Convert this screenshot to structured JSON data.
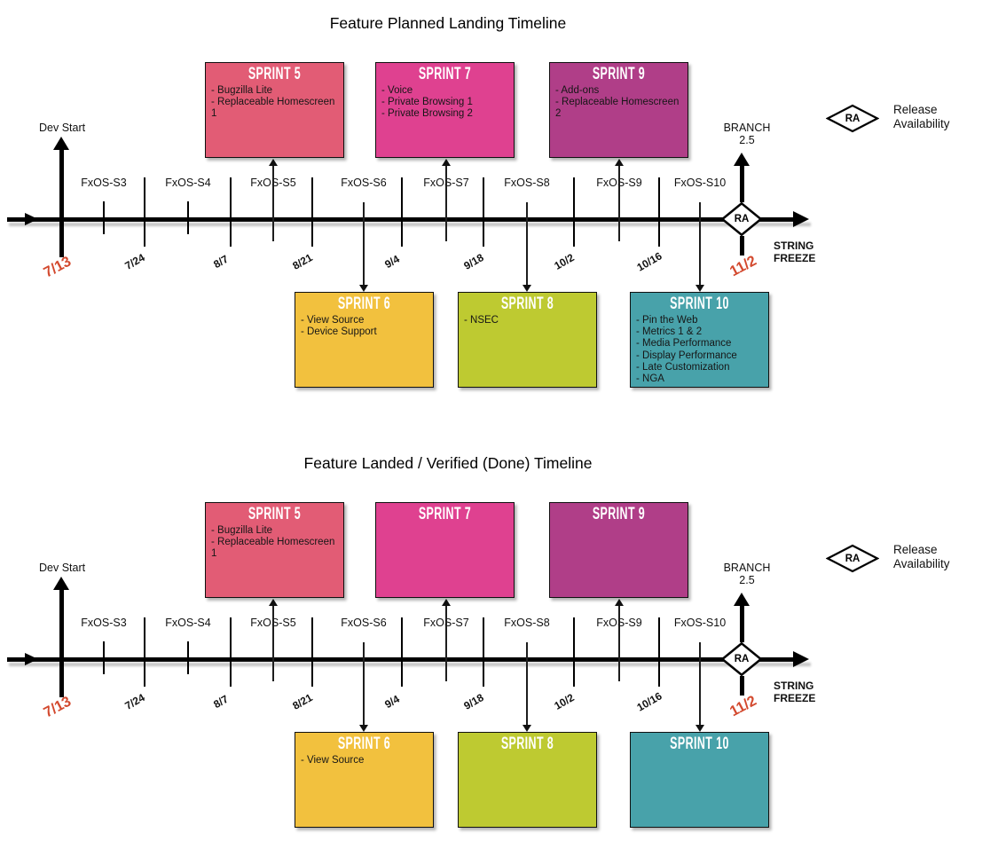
{
  "diagram": {
    "legend": {
      "symbol": "RA",
      "label_line1": "Release",
      "label_line2": "Availability"
    },
    "axis": {
      "dev_start": "Dev Start",
      "start_date": "7/13",
      "release_date": "11/2",
      "ra": "RA",
      "branch_line1": "BRANCH",
      "branch_line2": "2.5",
      "string_freeze_line1": "STRING",
      "string_freeze_line2": "FREEZE",
      "sprints": [
        "FxOS-S3",
        "FxOS-S4",
        "FxOS-S5",
        "FxOS-S6",
        "FxOS-S7",
        "FxOS-S8",
        "FxOS-S9",
        "FxOS-S10"
      ],
      "dates": [
        "7/24",
        "8/7",
        "8/21",
        "9/4",
        "9/18",
        "10/2",
        "10/16"
      ]
    },
    "colors": {
      "sprint_5": "#E25C75",
      "sprint_6": "#F2C13E",
      "sprint_7": "#DF4190",
      "sprint_8": "#BECA31",
      "sprint_9": "#B03E88",
      "sprint_10": "#48A2AA",
      "date_highlight": "#D3492E"
    },
    "timelines": [
      {
        "title": "Feature Planned Landing Timeline",
        "boxes": [
          {
            "sprint": 5,
            "label": "SPRINT 5",
            "items": [
              "Bugzilla Lite",
              "Replaceable Homescreen 1"
            ]
          },
          {
            "sprint": 7,
            "label": "SPRINT 7",
            "items": [
              "Voice",
              "Private Browsing 1",
              "Private Browsing 2"
            ]
          },
          {
            "sprint": 9,
            "label": "SPRINT 9",
            "items": [
              "Add-ons",
              "Replaceable Homescreen 2"
            ]
          },
          {
            "sprint": 6,
            "label": "SPRINT 6",
            "items": [
              "View Source",
              "Device Support"
            ]
          },
          {
            "sprint": 8,
            "label": "SPRINT 8",
            "items": [
              "NSEC"
            ]
          },
          {
            "sprint": 10,
            "label": "SPRINT 10",
            "items": [
              "Pin the Web",
              "Metrics 1 & 2",
              "Media Performance",
              "Display Performance",
              "Late Customization",
              "NGA"
            ]
          }
        ]
      },
      {
        "title": "Feature Landed / Verified (Done) Timeline",
        "boxes": [
          {
            "sprint": 5,
            "label": "SPRINT 5",
            "items": [
              "Bugzilla Lite",
              "Replaceable Homescreen 1"
            ]
          },
          {
            "sprint": 7,
            "label": "SPRINT 7",
            "items": []
          },
          {
            "sprint": 9,
            "label": "SPRINT 9",
            "items": []
          },
          {
            "sprint": 6,
            "label": "SPRINT 6",
            "items": [
              "View Source"
            ]
          },
          {
            "sprint": 8,
            "label": "SPRINT 8",
            "items": []
          },
          {
            "sprint": 10,
            "label": "SPRINT 10",
            "items": []
          }
        ]
      }
    ]
  }
}
